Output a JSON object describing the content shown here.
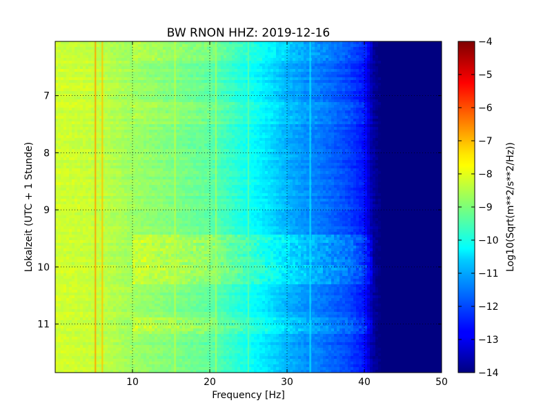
{
  "chart_data": {
    "type": "heatmap",
    "title": "BW RNON HHZ: 2019-12-16",
    "xlabel": "Frequency [Hz]",
    "ylabel": "Lokalzeit (UTC + 1 Stunde)",
    "xlim": [
      0,
      50
    ],
    "ylim": [
      11.85,
      6.05
    ],
    "y_inverted": true,
    "xticks": [
      10,
      20,
      30,
      40,
      50
    ],
    "xtick_labels": [
      "10",
      "20",
      "30",
      "40",
      "50"
    ],
    "yticks": [
      7,
      8,
      9,
      10,
      11
    ],
    "ytick_labels": [
      "7",
      "8",
      "9",
      "10",
      "11"
    ],
    "grid": true,
    "colormap": "jet",
    "colorbar": {
      "label": "Log10(Sqrt(m**2/s**2/Hz))",
      "range": [
        -14,
        -4
      ],
      "ticks": [
        -4,
        -5,
        -6,
        -7,
        -8,
        -9,
        -10,
        -11,
        -12,
        -13,
        -14
      ],
      "tick_labels": [
        "−4",
        "−5",
        "−6",
        "−7",
        "−8",
        "−9",
        "−10",
        "−11",
        "−12",
        "−13",
        "−14"
      ]
    },
    "background_profile": {
      "frequency_hz": [
        0,
        5,
        10,
        15,
        20,
        25,
        28,
        30,
        33,
        36,
        38,
        40,
        41,
        42,
        50
      ],
      "level": [
        -8.2,
        -8.3,
        -8.7,
        -9.0,
        -9.3,
        -10.1,
        -10.6,
        -11.0,
        -11.4,
        -11.8,
        -12.1,
        -12.6,
        -13.6,
        -14.0,
        -14.0
      ]
    },
    "spectral_lines": [
      {
        "frequency_hz": 5.2,
        "level": -6.8
      },
      {
        "frequency_hz": 6.1,
        "level": -7.2
      },
      {
        "frequency_hz": 15.5,
        "level": -8.4
      },
      {
        "frequency_hz": 20.8,
        "level": -8.6
      },
      {
        "frequency_hz": 25.0,
        "level": -9.3
      },
      {
        "frequency_hz": 33.0,
        "level": -10.5
      }
    ],
    "noisy_bands": [
      {
        "start_hour": 6.05,
        "end_hour": 6.4,
        "level_offset": 0.4
      },
      {
        "start_hour": 7.1,
        "end_hour": 7.5,
        "level_offset": 0.2
      },
      {
        "start_hour": 9.45,
        "end_hour": 10.3,
        "level_offset": 0.6
      },
      {
        "start_hour": 10.9,
        "end_hour": 11.15,
        "level_offset": 0.5
      }
    ]
  }
}
